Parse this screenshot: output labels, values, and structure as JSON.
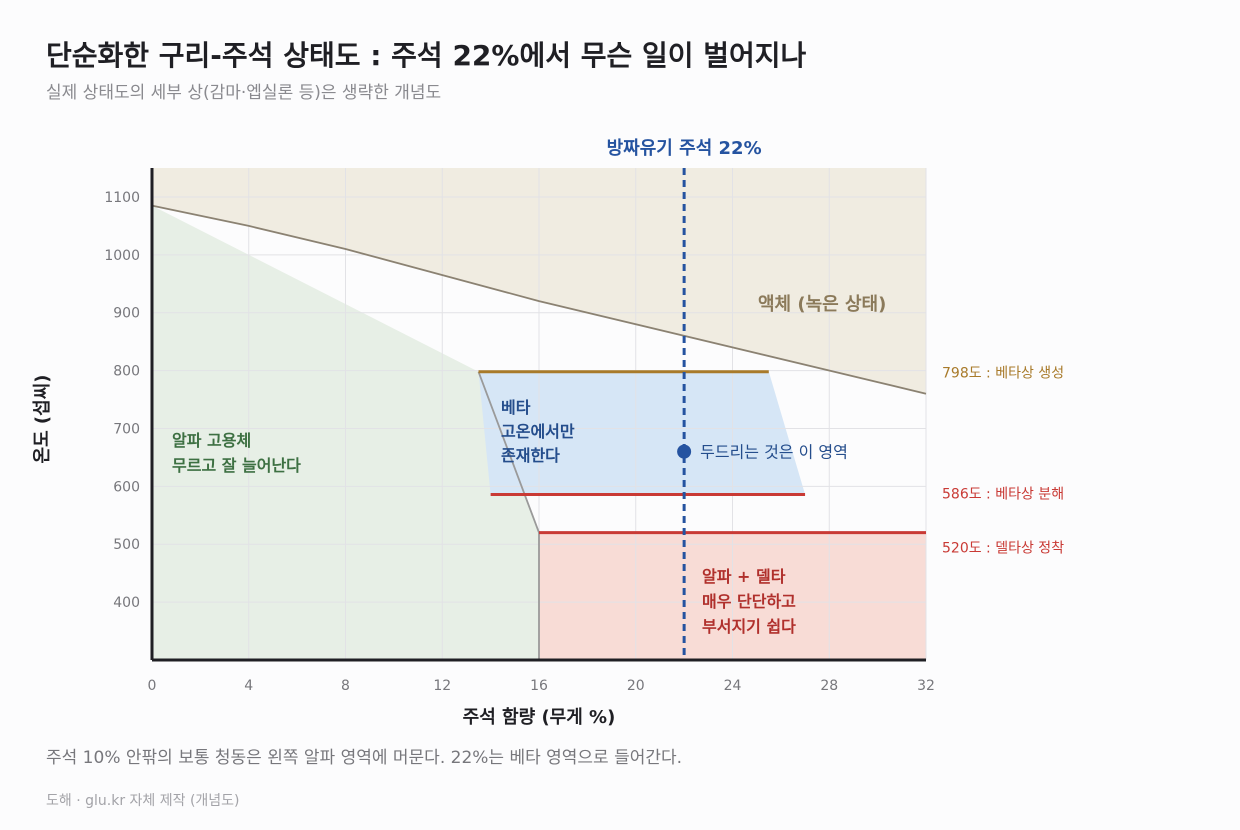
{
  "header": {
    "title": "단순화한 구리-주석 상태도 : 주석 22%에서 무슨 일이 벌어지나",
    "subtitle": "실제 상태도의 세부 상(감마·엡실론 등)은 생략한 개념도"
  },
  "footer": {
    "caption": "주석 10% 안팎의 보통 청동은 왼쪽 알파 영역에 머문다. 22%는 베타 영역으로 들어간다.",
    "source": "도해 · glu.kr 자체 제작 (개념도)"
  },
  "colors": {
    "liquid_region": "#f0ece1",
    "alpha_region": "#e7efe6",
    "beta_region": "#d6e6f6",
    "delta_region": "#f8dcd6",
    "liquidus_line": "#8b8272",
    "boundary_line": "#9a9a9a",
    "beta_formation_line": "#a87a2a",
    "red_line": "#c93a35",
    "bronze_marker": "#2553a0",
    "liquid_text": "#8b7a5a",
    "alpha_text": "#3d7042",
    "beta_text": "#244d8c",
    "delta_text": "#b0302c"
  },
  "chart_data": {
    "type": "area",
    "xlabel": "주석 함량 (무게 %)",
    "ylabel": "온도 (섭씨)",
    "xlim": [
      0,
      32
    ],
    "ylim": [
      300,
      1150
    ],
    "x_ticks": [
      0,
      4,
      8,
      12,
      16,
      20,
      24,
      28,
      32
    ],
    "y_ticks": [
      400,
      500,
      600,
      700,
      800,
      900,
      1000,
      1100
    ],
    "grid": true,
    "liquidus": [
      [
        0,
        1085
      ],
      [
        4,
        1050
      ],
      [
        8,
        1010
      ],
      [
        16,
        920
      ],
      [
        32,
        760
      ]
    ],
    "alpha_boundary": [
      [
        0,
        1085
      ],
      [
        13.5,
        798
      ],
      [
        16,
        520
      ],
      [
        16,
        300
      ]
    ],
    "regions": {
      "liquid": "액체 (녹은 상태)",
      "alpha": "알파 고용체\n무르고 잘 늘어난다",
      "beta": "베타\n고온에서만\n존재한다",
      "delta": "알파 + 델타\n매우 단단하고\n부서지기 쉽다"
    },
    "beta_region_polygon": [
      [
        13.5,
        798
      ],
      [
        25.5,
        798
      ],
      [
        27,
        586
      ],
      [
        14,
        586
      ]
    ],
    "delta_region_polygon": [
      [
        16,
        520
      ],
      [
        32,
        520
      ],
      [
        32,
        300
      ],
      [
        16,
        300
      ]
    ],
    "horizontal_lines": [
      {
        "y": 798,
        "x_range": [
          13.5,
          25.5
        ],
        "label": "798도 : 베타상 생성",
        "color": "#a87a2a"
      },
      {
        "y": 586,
        "x_range": [
          14,
          27
        ],
        "label": "586도 : 베타상 분해",
        "color": "#c93a35"
      },
      {
        "y": 520,
        "x_range": [
          16,
          32
        ],
        "label": "520도 : 델타상 정착",
        "color": "#c93a35"
      }
    ],
    "composition_line": {
      "x": 22,
      "label": "방짜유기 주석 22%"
    },
    "marker": {
      "x": 22,
      "y": 660,
      "label": "두드리는 것은 이 영역"
    }
  }
}
